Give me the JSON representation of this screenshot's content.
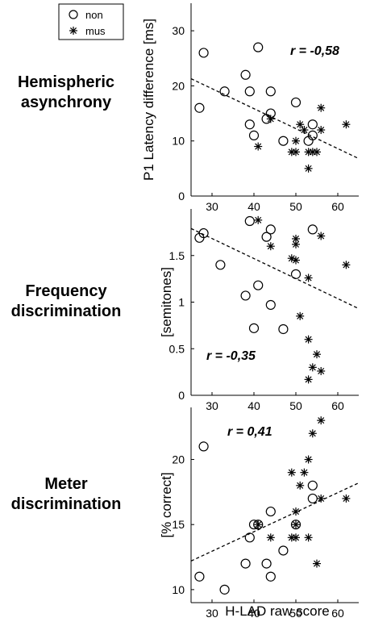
{
  "legend": {
    "items": [
      {
        "label": "non",
        "marker": "circle-icon"
      },
      {
        "label": "mus",
        "marker": "asterisk-icon"
      }
    ]
  },
  "row_labels": [
    {
      "line1": "Hemispheric",
      "line2": "asynchrony"
    },
    {
      "line1": "Frequency",
      "line2": "discrimination"
    },
    {
      "line1": "Meter",
      "line2": "discrimination"
    }
  ],
  "shared_xlabel": "H-LAD raw score",
  "chart_data": [
    {
      "type": "scatter",
      "title": "",
      "xlabel": "",
      "ylabel": "P1 Latency difference [ms]",
      "annotation": "r = -0,58",
      "xlim": [
        25,
        65
      ],
      "ylim": [
        0,
        35
      ],
      "xticks": [
        30,
        40,
        50,
        60
      ],
      "yticks": [
        0,
        10,
        20,
        30
      ],
      "ytick_labels": [
        "0",
        "10",
        "20",
        "30"
      ],
      "trend_line": {
        "x": [
          25,
          65
        ],
        "y": [
          21.3,
          6.8
        ]
      },
      "series": [
        {
          "name": "non",
          "marker": "circle",
          "points": [
            [
              27,
              16
            ],
            [
              28,
              26
            ],
            [
              33,
              19
            ],
            [
              38,
              22
            ],
            [
              39,
              19
            ],
            [
              39,
              13
            ],
            [
              40,
              11
            ],
            [
              41,
              27
            ],
            [
              43,
              14
            ],
            [
              44,
              19
            ],
            [
              44,
              15
            ],
            [
              47,
              10
            ],
            [
              50,
              17
            ],
            [
              53,
              10
            ],
            [
              54,
              11
            ],
            [
              54,
              13
            ]
          ]
        },
        {
          "name": "mus",
          "marker": "asterisk",
          "points": [
            [
              41,
              9
            ],
            [
              44,
              14
            ],
            [
              49,
              8
            ],
            [
              50,
              10
            ],
            [
              50,
              8
            ],
            [
              51,
              13
            ],
            [
              52,
              12
            ],
            [
              53,
              8
            ],
            [
              53,
              5
            ],
            [
              54,
              8
            ],
            [
              55,
              8
            ],
            [
              56,
              16
            ],
            [
              56,
              12
            ],
            [
              62,
              13
            ]
          ]
        }
      ]
    },
    {
      "type": "scatter",
      "title": "",
      "xlabel": "",
      "ylabel": "[semitones]",
      "annotation": "r = -0,35",
      "xlim": [
        25,
        65
      ],
      "ylim": [
        0,
        2
      ],
      "xticks": [
        30,
        40,
        50,
        60
      ],
      "yticks": [
        0,
        0.5,
        1,
        1.5
      ],
      "ytick_labels": [
        "0",
        "0.5",
        "1",
        "1.5"
      ],
      "trend_line": {
        "x": [
          25,
          65
        ],
        "y": [
          1.79,
          0.93
        ]
      },
      "series": [
        {
          "name": "non",
          "marker": "circle",
          "points": [
            [
              27,
              1.69
            ],
            [
              28,
              1.74
            ],
            [
              32,
              1.4
            ],
            [
              38,
              1.07
            ],
            [
              39,
              1.87
            ],
            [
              40,
              0.72
            ],
            [
              41,
              1.18
            ],
            [
              43,
              1.7
            ],
            [
              44,
              1.78
            ],
            [
              44,
              0.97
            ],
            [
              47,
              0.71
            ],
            [
              50,
              1.3
            ],
            [
              54,
              1.78
            ]
          ]
        },
        {
          "name": "mus",
          "marker": "asterisk",
          "points": [
            [
              41,
              1.88
            ],
            [
              44,
              1.6
            ],
            [
              49,
              1.47
            ],
            [
              50,
              1.45
            ],
            [
              50,
              1.62
            ],
            [
              50,
              1.68
            ],
            [
              51,
              0.85
            ],
            [
              53,
              1.26
            ],
            [
              53,
              0.6
            ],
            [
              53,
              0.17
            ],
            [
              54,
              0.3
            ],
            [
              55,
              0.44
            ],
            [
              56,
              1.71
            ],
            [
              56,
              0.26
            ],
            [
              62,
              1.4
            ]
          ]
        }
      ]
    },
    {
      "type": "scatter",
      "title": "",
      "xlabel": "H-LAD raw score",
      "ylabel": "[% correct]",
      "annotation": "r = 0,41",
      "xlim": [
        25,
        65
      ],
      "ylim": [
        9,
        24
      ],
      "xticks": [
        30,
        40,
        50,
        60
      ],
      "yticks": [
        10,
        15,
        20
      ],
      "ytick_labels": [
        "10",
        "15",
        "20"
      ],
      "xtick_labels": [
        "30",
        "40",
        "50",
        "60"
      ],
      "trend_line": {
        "x": [
          25,
          65
        ],
        "y": [
          12.2,
          18.2
        ]
      },
      "series": [
        {
          "name": "non",
          "marker": "circle",
          "points": [
            [
              27,
              11
            ],
            [
              28,
              21
            ],
            [
              33,
              10
            ],
            [
              38,
              12
            ],
            [
              39,
              14
            ],
            [
              40,
              15
            ],
            [
              41,
              15
            ],
            [
              43,
              12
            ],
            [
              44,
              11
            ],
            [
              44,
              16
            ],
            [
              47,
              13
            ],
            [
              50,
              15
            ],
            [
              54,
              17
            ],
            [
              54,
              18
            ]
          ]
        },
        {
          "name": "mus",
          "marker": "asterisk",
          "points": [
            [
              41,
              15
            ],
            [
              44,
              14
            ],
            [
              49,
              14
            ],
            [
              49,
              19
            ],
            [
              50,
              16
            ],
            [
              50,
              15
            ],
            [
              50,
              14
            ],
            [
              51,
              18
            ],
            [
              52,
              19
            ],
            [
              53,
              14
            ],
            [
              53,
              20
            ],
            [
              54,
              22
            ],
            [
              55,
              12
            ],
            [
              56,
              17
            ],
            [
              56,
              23
            ],
            [
              62,
              17
            ]
          ]
        }
      ]
    }
  ]
}
